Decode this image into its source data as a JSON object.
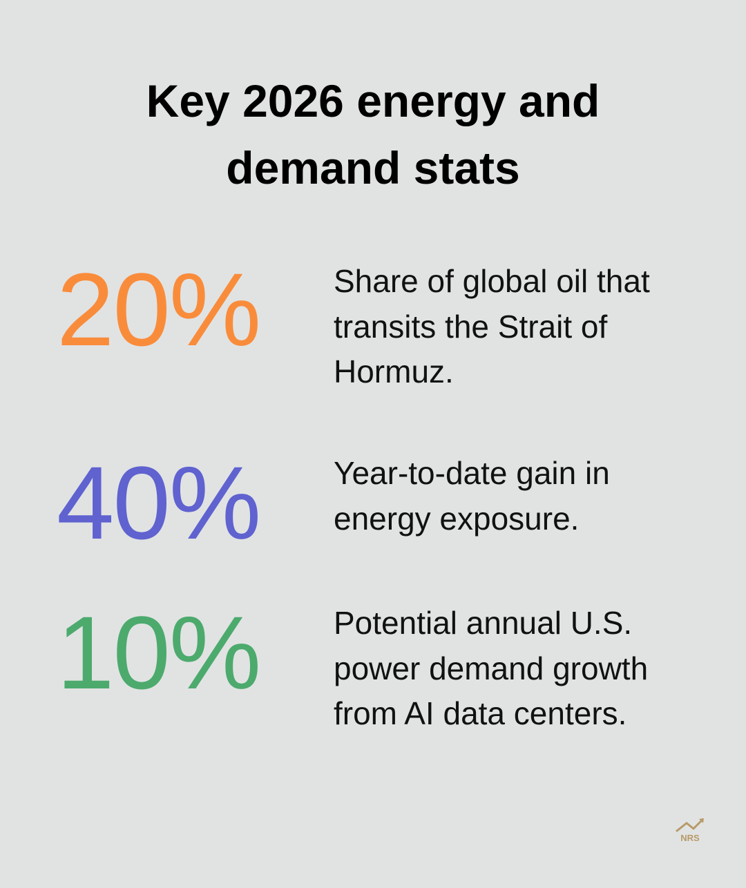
{
  "header": {
    "title_lines": [
      "Key 2026 energy and",
      "demand stats"
    ]
  },
  "stats": [
    {
      "value": "20%",
      "color": "#f98c3b",
      "lines": [
        "Share of global oil that",
        "transits the Strait of",
        "Hormuz."
      ]
    },
    {
      "value": "40%",
      "color": "#5f62cf",
      "lines": [
        "Year-to-date gain in",
        "energy exposure."
      ]
    },
    {
      "value": "10%",
      "color": "#4caa6d",
      "lines": [
        "Potential annual U.S.",
        "power demand growth",
        "from AI data centers."
      ]
    }
  ],
  "logo": {
    "text": "NRS"
  }
}
